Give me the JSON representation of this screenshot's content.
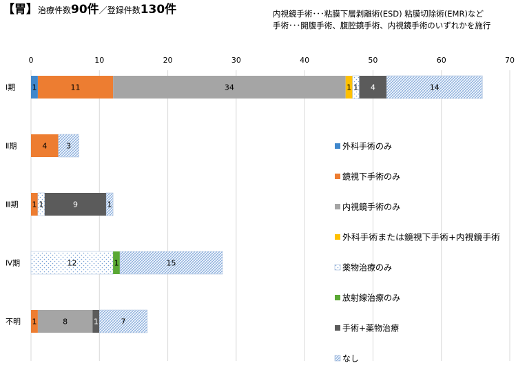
{
  "title": {
    "bracket_open": "【",
    "organ": "胃",
    "bracket_close": "】",
    "treated_label": "治療件数",
    "treated_value": "90件",
    "sep": "／",
    "registered_label": "登録件数",
    "registered_value": "130件"
  },
  "notes": {
    "line1": "内視鏡手術･･･粘膜下層剥離術(ESD) 粘膜切除術(EMR)など",
    "line2": "手術･･･開腹手術、腹腔鏡手術、内視鏡手術のいずれかを施行"
  },
  "chart_data": {
    "type": "bar",
    "orientation": "horizontal",
    "stacked": true,
    "categories": [
      "Ⅰ期",
      "Ⅱ期",
      "Ⅲ期",
      "Ⅳ期",
      "不明"
    ],
    "xlim": [
      0,
      70
    ],
    "xticks": [
      0,
      10,
      20,
      30,
      40,
      50,
      60,
      70
    ],
    "grid": "vertical",
    "legend_position": "right",
    "series": [
      {
        "name": "外科手術のみ",
        "color": "#3f87cc",
        "pattern": "solid",
        "values": [
          1,
          0,
          0,
          0,
          0
        ]
      },
      {
        "name": "鏡視下手術のみ",
        "color": "#ed7d31",
        "pattern": "solid",
        "values": [
          11,
          4,
          1,
          0,
          1
        ]
      },
      {
        "name": "内視鏡手術のみ",
        "color": "#a5a5a5",
        "pattern": "solid",
        "values": [
          34,
          0,
          0,
          0,
          8
        ]
      },
      {
        "name": "外科手術または鏡視下手術+内視鏡手術",
        "color": "#ffc000",
        "pattern": "solid",
        "values": [
          1,
          0,
          0,
          0,
          0
        ]
      },
      {
        "name": "薬物治療のみ",
        "color": "#ffffff",
        "pattern": "dots",
        "values": [
          1,
          0,
          1,
          12,
          0
        ]
      },
      {
        "name": "放射線治療のみ",
        "color": "#5aa834",
        "pattern": "solid",
        "values": [
          0,
          0,
          0,
          1,
          0
        ]
      },
      {
        "name": "手術+薬物治療",
        "color": "#5b5b5b",
        "pattern": "solid",
        "values": [
          4,
          0,
          9,
          0,
          1
        ]
      },
      {
        "name": "なし",
        "color": "#ffffff",
        "pattern": "hatch",
        "values": [
          14,
          3,
          1,
          15,
          7
        ]
      }
    ]
  }
}
